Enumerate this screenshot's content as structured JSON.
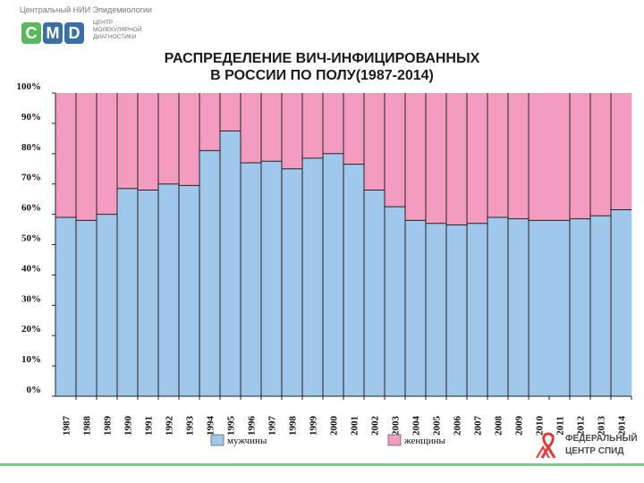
{
  "header": {
    "org_text": "Центральный НИИ Эпидемиологии",
    "logo_letters": [
      "C",
      "M",
      "D"
    ],
    "logo_subtext": "ЦЕНТР\nМОЛЕКУЛЯРНОЙ\nДИАГНОСТИКИ"
  },
  "footer": {
    "logo_line1": "ФЕДЕРАЛЬНЫЙ",
    "logo_line2": "ЦЕНТР СПИД"
  },
  "colors": {
    "men": "#a0c8ea",
    "women": "#f39cbf",
    "logo_green": "#5cb85c",
    "logo_blue": "#3a6ea5",
    "ribbon": "#e53935"
  },
  "chart_data": {
    "type": "bar",
    "stacked": true,
    "title_lines": [
      "РАСПРЕДЕЛЕНИЕ ВИЧ-ИНФИЦИРОВАННЫХ",
      "В РОССИИ ПО ПОЛУ(1987-2014)"
    ],
    "categories": [
      "1987",
      "1988",
      "1989",
      "1990",
      "1991",
      "1992",
      "1993",
      "1994",
      "1995",
      "1996",
      "1997",
      "1998",
      "1999",
      "2000",
      "2001",
      "2002",
      "2003",
      "2004",
      "2005",
      "2006",
      "2007",
      "2008",
      "2009",
      "2010",
      "2011",
      "2012",
      "2013",
      "2014"
    ],
    "y_tick_labels": [
      "0%",
      "10%",
      "20%",
      "30%",
      "40%",
      "50%",
      "60%",
      "70%",
      "80%",
      "90%",
      "100%"
    ],
    "ylim": [
      0,
      100
    ],
    "series": [
      {
        "name": "мужчины",
        "values": [
          59,
          58,
          60,
          68.5,
          68,
          70,
          69.5,
          81,
          87.5,
          77,
          77.5,
          75,
          78.5,
          80,
          76.5,
          68,
          62.5,
          58,
          57,
          56.5,
          57,
          59,
          58.5,
          58,
          58,
          58.5,
          59.5,
          61.5
        ]
      },
      {
        "name": "женщины",
        "values": [
          41,
          42,
          40,
          31.5,
          32,
          30,
          30.5,
          19,
          12.5,
          23,
          22.5,
          25,
          21.5,
          20,
          23.5,
          32,
          37.5,
          42,
          43,
          43.5,
          43,
          41,
          41.5,
          42,
          42,
          41.5,
          40.5,
          38.5
        ]
      }
    ],
    "legend_position": "bottom",
    "grid": false
  }
}
